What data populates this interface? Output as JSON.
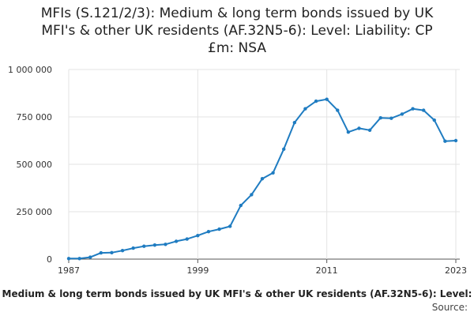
{
  "title_lines": [
    "MFIs (S.121/2/3): Medium & long term bonds issued by UK",
    "MFI's & other UK residents (AF.32N5-6): Level: Liability: CP",
    "£m: NSA"
  ],
  "footer": {
    "series_caption": "Medium & long term bonds issued by UK MFI's & other UK residents (AF.32N5-6): Level:",
    "source_label": "Source:"
  },
  "colors": {
    "line": "#1f7cc1",
    "grid": "#e3e3e3",
    "axis": "#555555"
  },
  "chart_data": {
    "type": "line",
    "title": "MFIs (S.121/2/3): Medium & long term bonds issued by UK MFI's & other UK residents (AF.32N5-6): Level: Liability: CP £m: NSA",
    "xlabel": "",
    "ylabel": "",
    "xlim": [
      1987,
      2023
    ],
    "ylim": [
      0,
      1000000
    ],
    "y_ticks": [
      0,
      250000,
      500000,
      750000,
      1000000
    ],
    "y_tick_labels": [
      "0",
      "250 000",
      "500 000",
      "750 000",
      "1 000 000"
    ],
    "x_ticks": [
      1987,
      1999,
      2011,
      2023
    ],
    "x_tick_labels": [
      "1987",
      "1999",
      "2011",
      "2023"
    ],
    "grid": true,
    "series": [
      {
        "name": "",
        "x": [
          1987,
          1988,
          1989,
          1990,
          1991,
          1992,
          1993,
          1994,
          1995,
          1996,
          1997,
          1998,
          1999,
          2000,
          2001,
          2002,
          2003,
          2004,
          2005,
          2006,
          2007,
          2008,
          2009,
          2010,
          2011,
          2012,
          2013,
          2014,
          2015,
          2016,
          2017,
          2018,
          2019,
          2020,
          2021,
          2022,
          2023
        ],
        "values": [
          3000,
          3000,
          10000,
          33000,
          34000,
          45000,
          58000,
          68000,
          74000,
          78000,
          94000,
          106000,
          124000,
          145000,
          158000,
          173000,
          283000,
          340000,
          424000,
          455000,
          580000,
          720000,
          793000,
          833000,
          843000,
          785000,
          670000,
          690000,
          680000,
          745000,
          743000,
          765000,
          793000,
          785000,
          733000,
          622000,
          625000
        ]
      }
    ]
  }
}
